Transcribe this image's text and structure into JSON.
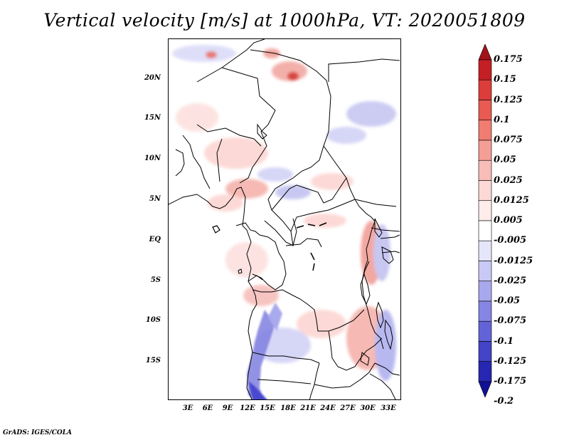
{
  "title": "Vertical velocity [m/s] at 1000hPa, VT: 2020051809",
  "y_axis_labels": [
    "20N",
    "15N",
    "10N",
    "5N",
    "EQ",
    "5S",
    "10S",
    "15S"
  ],
  "x_axis_labels": [
    "3E",
    "6E",
    "9E",
    "12E",
    "15E",
    "18E",
    "21E",
    "24E",
    "27E",
    "30E",
    "33E"
  ],
  "colorbar": {
    "labels": [
      "0.175",
      "0.15",
      "0.125",
      "0.1",
      "0.075",
      "0.05",
      "0.025",
      "0.0125",
      "0.005",
      "-0.005",
      "-0.0125",
      "-0.025",
      "-0.05",
      "-0.075",
      "-0.1",
      "-0.125",
      "-0.175",
      "-0.2"
    ],
    "colors": [
      "#a1141a",
      "#c41f24",
      "#dc3c3a",
      "#e85a52",
      "#f07c72",
      "#f59e96",
      "#f9bdb8",
      "#fcd9d6",
      "#fdecea",
      "#ffffff",
      "#e6e6fb",
      "#c9c9f5",
      "#a8a8ee",
      "#8585e4",
      "#6363d8",
      "#4343c8",
      "#2626b2",
      "#111196"
    ],
    "top_arrow_color": "#a1141a",
    "bottom_arrow_color": "#111196"
  },
  "credit": "GrADS: IGES/COLA"
}
